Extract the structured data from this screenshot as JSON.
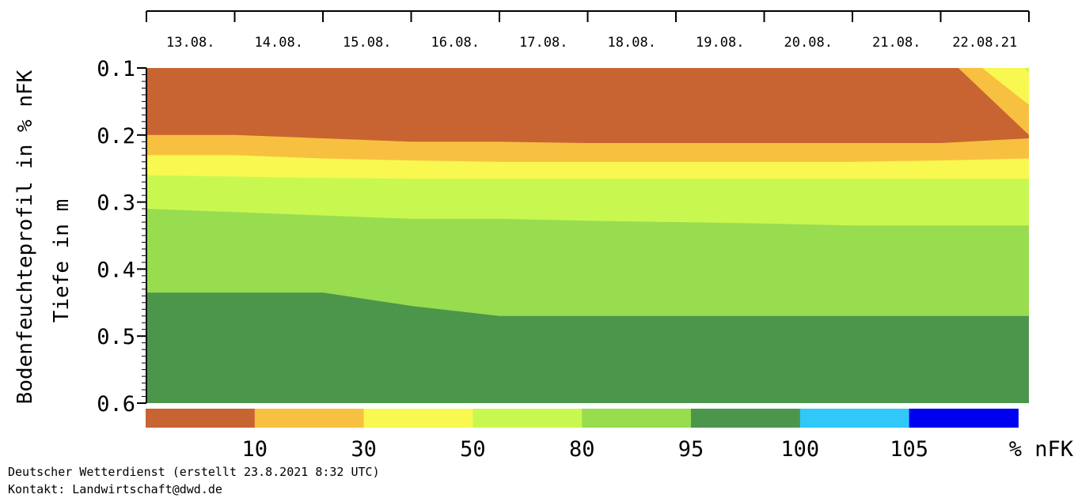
{
  "chart_data": {
    "type": "heatmap",
    "ylabel_line1": "Bodenfeuchteprofil in % nFK",
    "ylabel_line2": "Tiefe in m",
    "x_tick_labels": [
      "13.08.",
      "14.08.",
      "15.08.",
      "16.08.",
      "17.08.",
      "18.08.",
      "19.08.",
      "20.08.",
      "21.08.",
      "22.08.21"
    ],
    "y_ticks": [
      {
        "value": 0.1,
        "label": "0.1"
      },
      {
        "value": 0.2,
        "label": "0.2"
      },
      {
        "value": 0.3,
        "label": "0.3"
      },
      {
        "value": 0.4,
        "label": "0.4"
      },
      {
        "value": 0.5,
        "label": "0.5"
      },
      {
        "value": 0.6,
        "label": "0.6"
      }
    ],
    "ylim": [
      0.1,
      0.6
    ],
    "y_inverted": true,
    "x_days_range": [
      0,
      10
    ],
    "classes": [
      {
        "range": "<10",
        "color": "#c86432"
      },
      {
        "range": "10-30",
        "color": "#f8c040"
      },
      {
        "range": "30-50",
        "color": "#f8f850"
      },
      {
        "range": "50-80",
        "color": "#c8f850"
      },
      {
        "range": "80-95",
        "color": "#98dc50"
      },
      {
        "range": "95-100",
        "color": "#4c964c"
      },
      {
        "range": "100-105",
        "color": "#30c8f8"
      },
      {
        "range": ">105",
        "color": "#0000f0"
      }
    ],
    "legend_tick_labels": [
      "10",
      "30",
      "50",
      "80",
      "95",
      "100",
      "105"
    ],
    "legend_unit": "% nFK",
    "boundaries": [
      {
        "class_index": 0,
        "points": [
          [
            0,
            0.2
          ],
          [
            10,
            0.2
          ]
        ]
      },
      {
        "class_index": 1,
        "points": [
          [
            0,
            0.2
          ],
          [
            1,
            0.2
          ],
          [
            2,
            0.205
          ],
          [
            3,
            0.21
          ],
          [
            4,
            0.21
          ],
          [
            5,
            0.212
          ],
          [
            6,
            0.212
          ],
          [
            7,
            0.212
          ],
          [
            9,
            0.212
          ],
          [
            10,
            0.205
          ]
        ]
      },
      {
        "class_index": 2,
        "points": [
          [
            0,
            0.23
          ],
          [
            1,
            0.23
          ],
          [
            2,
            0.235
          ],
          [
            3,
            0.238
          ],
          [
            4,
            0.24
          ],
          [
            5,
            0.24
          ],
          [
            7,
            0.24
          ],
          [
            8,
            0.24
          ],
          [
            9,
            0.238
          ],
          [
            10,
            0.235
          ]
        ]
      },
      {
        "class_index": 3,
        "points": [
          [
            0,
            0.26
          ],
          [
            1,
            0.262
          ],
          [
            2,
            0.264
          ],
          [
            3,
            0.265
          ],
          [
            4,
            0.265
          ],
          [
            5,
            0.265
          ],
          [
            7,
            0.265
          ],
          [
            9,
            0.265
          ],
          [
            10,
            0.265
          ]
        ]
      },
      {
        "class_index": 4,
        "points": [
          [
            0,
            0.31
          ],
          [
            1,
            0.315
          ],
          [
            2,
            0.32
          ],
          [
            3,
            0.325
          ],
          [
            4,
            0.325
          ],
          [
            5,
            0.328
          ],
          [
            6,
            0.33
          ],
          [
            7,
            0.332
          ],
          [
            8,
            0.335
          ],
          [
            9,
            0.335
          ],
          [
            10,
            0.335
          ]
        ]
      },
      {
        "class_index": 5,
        "points": [
          [
            0,
            0.435
          ],
          [
            1,
            0.435
          ],
          [
            2,
            0.435
          ],
          [
            3,
            0.455
          ],
          [
            4,
            0.47
          ],
          [
            5,
            0.47
          ],
          [
            7,
            0.47
          ],
          [
            10,
            0.47
          ]
        ]
      }
    ],
    "topright_patches": [
      {
        "class_index": 1,
        "points": [
          [
            9.2,
            0.1
          ],
          [
            10,
            0.1
          ],
          [
            10,
            0.2
          ]
        ]
      },
      {
        "class_index": 2,
        "points": [
          [
            9.47,
            0.1
          ],
          [
            10,
            0.1
          ],
          [
            10,
            0.155
          ]
        ]
      },
      {
        "class_index": 3,
        "points": [
          [
            9.95,
            0.1
          ],
          [
            10,
            0.1
          ],
          [
            10,
            0.108
          ]
        ]
      }
    ]
  },
  "footer": {
    "line1": "Deutscher Wetterdienst (erstellt 23.8.2021 8:32 UTC)",
    "line2": "Kontakt: Landwirtschaft@dwd.de"
  }
}
